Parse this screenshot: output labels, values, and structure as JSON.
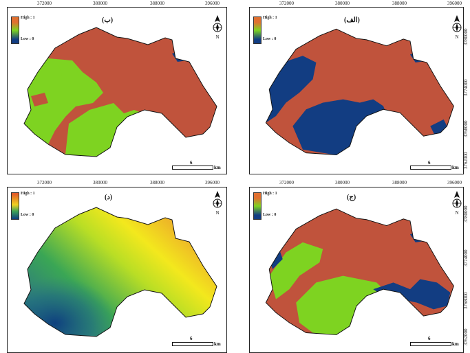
{
  "x_ticks": [
    "372000",
    "380000",
    "388000",
    "396000"
  ],
  "y_ticks": [
    "3762000",
    "3768000",
    "3774000",
    "3780000"
  ],
  "legend": {
    "high": "High : 1",
    "low": "Low : 0"
  },
  "scale": {
    "value": "6",
    "unit": "km"
  },
  "north_label": "N",
  "colors": {
    "high_class": "#c0533c",
    "mid_class": "#7ed321",
    "low_class": "#123d82",
    "gradient_high": "#d6492b",
    "gradient_mid": "#f3e81d",
    "gradient_green": "#3aa655",
    "gradient_low": "#0d3d7e"
  },
  "panels": [
    {
      "id": "top-left",
      "title": "(ب)"
    },
    {
      "id": "top-right",
      "title": "(الف)"
    },
    {
      "id": "bottom-left",
      "title": "(د)"
    },
    {
      "id": "bottom-right",
      "title": "(ج)"
    }
  ]
}
